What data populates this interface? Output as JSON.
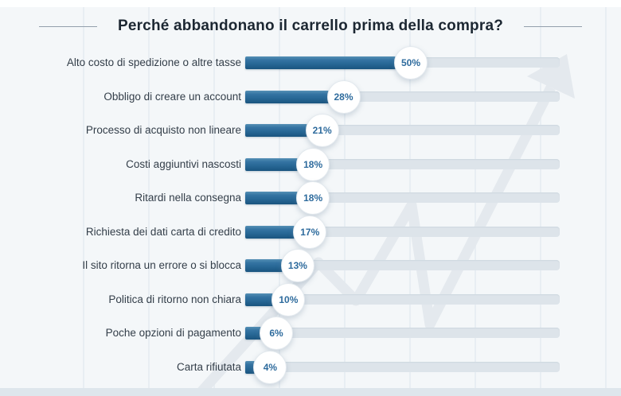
{
  "title": "Perché abbandonano il carrello prima della compra?",
  "chart_data": {
    "type": "bar",
    "orientation": "horizontal",
    "title": "Perché abbandonano il carrello prima della compra?",
    "categories": [
      "Alto costo di spedizione o altre tasse",
      "Obbligo di creare un account",
      "Processo di acquisto non lineare",
      "Costi aggiuntivi nascosti",
      "Ritardi nella consegna",
      "Richiesta dei dati carta di credito",
      "Il sito ritorna un errore o si blocca",
      "Politica di ritorno non chiara",
      "Poche opzioni di pagamento",
      "Carta rifiutata"
    ],
    "values": [
      50,
      28,
      21,
      18,
      18,
      17,
      13,
      10,
      6,
      4
    ],
    "value_labels": [
      "50%",
      "28%",
      "21%",
      "18%",
      "18%",
      "17%",
      "13%",
      "10%",
      "6%",
      "4%"
    ],
    "unit": "%",
    "xlim": [
      0,
      100
    ],
    "grid": "faint-vertical",
    "legend": "none",
    "colors": {
      "bar_top": "#5590b5",
      "bar_bottom": "#1a547f",
      "track": "#dde4ea",
      "badge_bg": "#ffffff",
      "badge_text": "#2e6b9d",
      "label_text": "#333e49",
      "title_text": "#1c2732",
      "background": "#f4f7f9",
      "bottom_strip": "#dee6ec"
    },
    "watermark": "trend-arrow"
  }
}
